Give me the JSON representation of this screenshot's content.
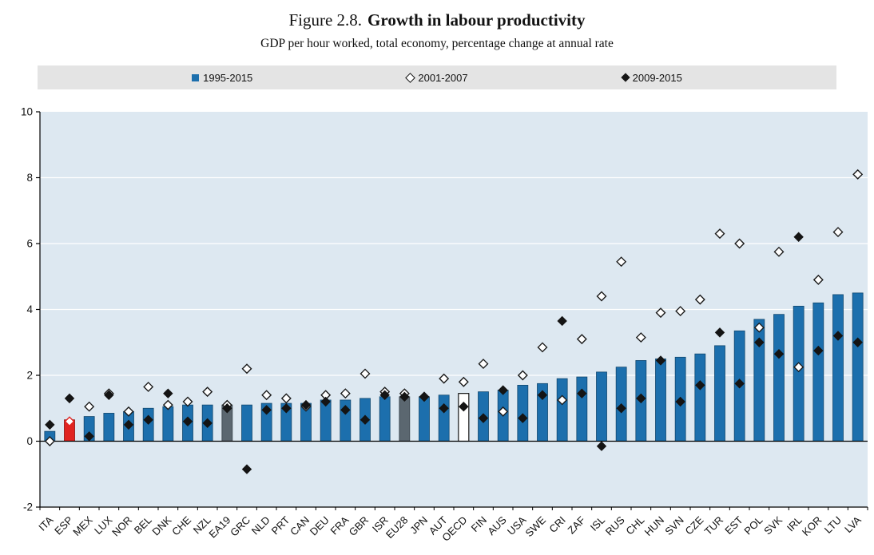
{
  "header": {
    "figure_label": "Figure 2.8.",
    "title": "Growth in labour productivity",
    "subtitle": "GDP per hour worked, total economy, percentage change at annual rate"
  },
  "legend": [
    {
      "label": "1995-2015",
      "marker": "square",
      "color": "#1c6fad"
    },
    {
      "label": "2001-2007",
      "marker": "diamond-open",
      "color": "#ffffff"
    },
    {
      "label": "2009-2015",
      "marker": "diamond-filled",
      "color": "#161616"
    }
  ],
  "chart_data": {
    "type": "bar",
    "title": "Growth in labour productivity",
    "subtitle": "GDP per hour worked, total economy, percentage change at annual rate",
    "ylabel": "",
    "xlabel": "",
    "ylim": [
      -2,
      10
    ],
    "yticks": [
      -2,
      0,
      2,
      4,
      6,
      8,
      10
    ],
    "grid": "horizontal-white-on-lightblue",
    "plot_bg": "#dde8f1",
    "categories": [
      "ITA",
      "ESP",
      "MEX",
      "LUX",
      "NOR",
      "BEL",
      "DNK",
      "CHE",
      "NZL",
      "EA19",
      "GRC",
      "NLD",
      "PRT",
      "CAN",
      "DEU",
      "FRA",
      "GBR",
      "ISR",
      "EU28",
      "JPN",
      "AUT",
      "OECD",
      "FIN",
      "AUS",
      "USA",
      "SWE",
      "CRI",
      "ZAF",
      "ISL",
      "RUS",
      "CHL",
      "HUN",
      "SVN",
      "CZE",
      "TUR",
      "EST",
      "POL",
      "SVK",
      "IRL",
      "KOR",
      "LTU",
      "LVA"
    ],
    "series": [
      {
        "name": "1995-2015",
        "type": "bar",
        "values": [
          0.3,
          0.65,
          0.75,
          0.85,
          0.9,
          1.0,
          1.05,
          1.1,
          1.1,
          1.1,
          1.1,
          1.15,
          1.15,
          1.15,
          1.25,
          1.25,
          1.3,
          1.35,
          1.35,
          1.35,
          1.4,
          1.45,
          1.5,
          1.55,
          1.7,
          1.75,
          1.9,
          1.95,
          2.1,
          2.25,
          2.45,
          2.5,
          2.55,
          2.65,
          2.9,
          3.35,
          3.7,
          3.85,
          4.1,
          4.2,
          4.45,
          4.5
        ]
      },
      {
        "name": "2001-2007",
        "type": "scatter-open-diamond",
        "values": [
          0.0,
          0.6,
          1.05,
          1.45,
          0.9,
          1.65,
          1.1,
          1.2,
          1.5,
          1.1,
          2.2,
          1.4,
          1.3,
          1.05,
          1.4,
          1.45,
          2.05,
          1.5,
          1.45,
          1.35,
          1.9,
          1.8,
          2.35,
          0.9,
          2.0,
          2.85,
          1.25,
          3.1,
          4.4,
          5.45,
          3.15,
          3.9,
          3.95,
          4.3,
          6.3,
          6.0,
          3.45,
          5.75,
          2.25,
          4.9,
          6.35,
          8.1
        ]
      },
      {
        "name": "2009-2015",
        "type": "scatter-filled-diamond",
        "values": [
          0.5,
          1.3,
          0.15,
          1.4,
          0.5,
          0.65,
          1.45,
          0.6,
          0.55,
          1.0,
          -0.85,
          0.95,
          1.0,
          1.1,
          1.2,
          0.95,
          0.65,
          1.4,
          1.35,
          1.35,
          1.0,
          1.05,
          0.7,
          1.55,
          0.7,
          1.4,
          3.65,
          1.45,
          -0.15,
          1.0,
          1.3,
          2.45,
          1.2,
          1.7,
          3.3,
          1.75,
          3.0,
          2.65,
          6.2,
          2.75,
          3.2,
          3.0
        ]
      }
    ],
    "bar_colors": {
      "default": "#1c6fad",
      "ESP": "#e02421",
      "EA19": "#5b6770",
      "EU28": "#5b6770",
      "OECD": "#ffffff"
    },
    "highlight_country": "ESP",
    "highlight_color": "#e02421",
    "legend_position": "top"
  }
}
